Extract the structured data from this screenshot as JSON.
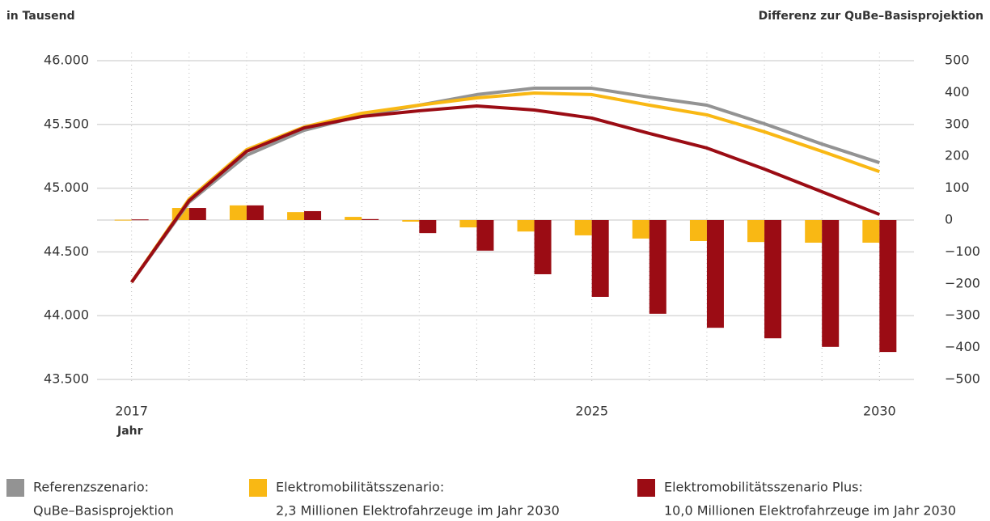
{
  "chart_data": {
    "type": "line_bar",
    "left_axis_label": "in Tausend",
    "right_axis_label": "Differenz zur QuBe–Basisprojektion",
    "x_label": "Jahr",
    "x": [
      2017,
      2018,
      2019,
      2020,
      2021,
      2022,
      2023,
      2024,
      2025,
      2026,
      2027,
      2028,
      2029,
      2030
    ],
    "xlim": [
      2016.4,
      2030.6
    ],
    "xticks": [
      2017,
      2025,
      2030
    ],
    "ylim": [
      43500,
      46000
    ],
    "yticks": [
      {
        "value": 43500,
        "label": "43.500"
      },
      {
        "value": 44000,
        "label": "44.000"
      },
      {
        "value": 44500,
        "label": "44.500"
      },
      {
        "value": 45000,
        "label": "45.000"
      },
      {
        "value": 45500,
        "label": "45.500"
      },
      {
        "value": 46000,
        "label": "46.000"
      }
    ],
    "y2lim": [
      -500,
      500
    ],
    "y2ticks": [
      {
        "value": -500,
        "label": "−500"
      },
      {
        "value": -400,
        "label": "−400"
      },
      {
        "value": -300,
        "label": "−300"
      },
      {
        "value": -200,
        "label": "−200"
      },
      {
        "value": -100,
        "label": "−100"
      },
      0,
      100,
      200,
      300,
      400,
      500
    ],
    "grid": true,
    "series": [
      {
        "name": "Referenzszenario:",
        "description": "QuBe–Basisprojektion",
        "color": "#939393",
        "values": [
          44262,
          44890,
          45258,
          45454,
          45569,
          45651,
          45734,
          45784,
          45784,
          45714,
          45651,
          45505,
          45346,
          45200
        ]
      },
      {
        "name": "Elektromobilitätsszenario:",
        "description": "2,3 Millionen Elektrofahrzeuge im Jahr 2030",
        "color": "#f9b814",
        "values": [
          44262,
          44915,
          45302,
          45480,
          45588,
          45651,
          45708,
          45746,
          45734,
          45651,
          45575,
          45442,
          45289,
          45130
        ],
        "differences": [
          1,
          38,
          46,
          25,
          10,
          -5,
          -23,
          -36,
          -48,
          -58,
          -66,
          -69,
          -71,
          -71
        ],
        "axis": "y2"
      },
      {
        "name": "Elektromobilitätsszenario Plus:",
        "description": "10,0 Millionen Elektrofahrzeuge im Jahr 2030",
        "color": "#9b0c14",
        "values": [
          44262,
          44902,
          45289,
          45473,
          45562,
          45607,
          45645,
          45613,
          45550,
          45429,
          45315,
          45150,
          44972,
          44794
        ],
        "differences": [
          2,
          38,
          46,
          28,
          3,
          -41,
          -96,
          -170,
          -241,
          -294,
          -338,
          -371,
          -398,
          -414
        ],
        "axis": "y2"
      }
    ]
  }
}
